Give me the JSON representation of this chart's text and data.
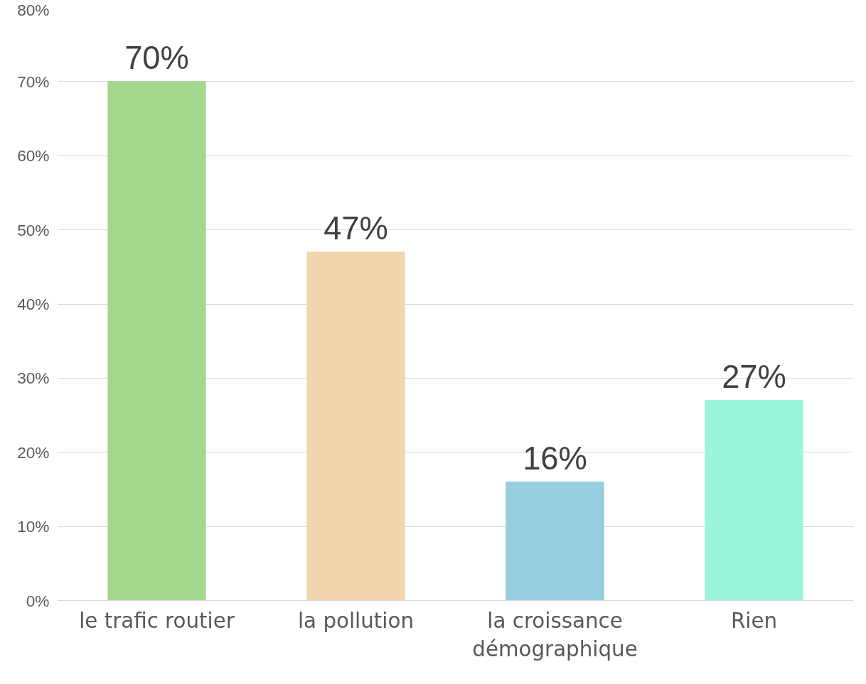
{
  "chart_data": {
    "type": "bar",
    "categories": [
      "le trafic routier",
      "la pollution",
      "la croissance démographique",
      "Rien"
    ],
    "values": [
      70,
      47,
      16,
      27
    ],
    "colors": [
      "#a3d78b",
      "#f2d6ad",
      "#96cde0",
      "#9df5dc"
    ],
    "value_labels": [
      "70%",
      "47%",
      "16%",
      "27%"
    ],
    "ylim": [
      0,
      80
    ],
    "yticks": [
      {
        "value": 0,
        "label": "0%"
      },
      {
        "value": 10,
        "label": "10%"
      },
      {
        "value": 20,
        "label": "20%"
      },
      {
        "value": 30,
        "label": "30%"
      },
      {
        "value": 40,
        "label": "40%"
      },
      {
        "value": 50,
        "label": "50%"
      },
      {
        "value": 60,
        "label": "60%"
      },
      {
        "value": 70,
        "label": "70%"
      },
      {
        "value": 80,
        "label": "80%"
      }
    ],
    "grid": "y"
  }
}
